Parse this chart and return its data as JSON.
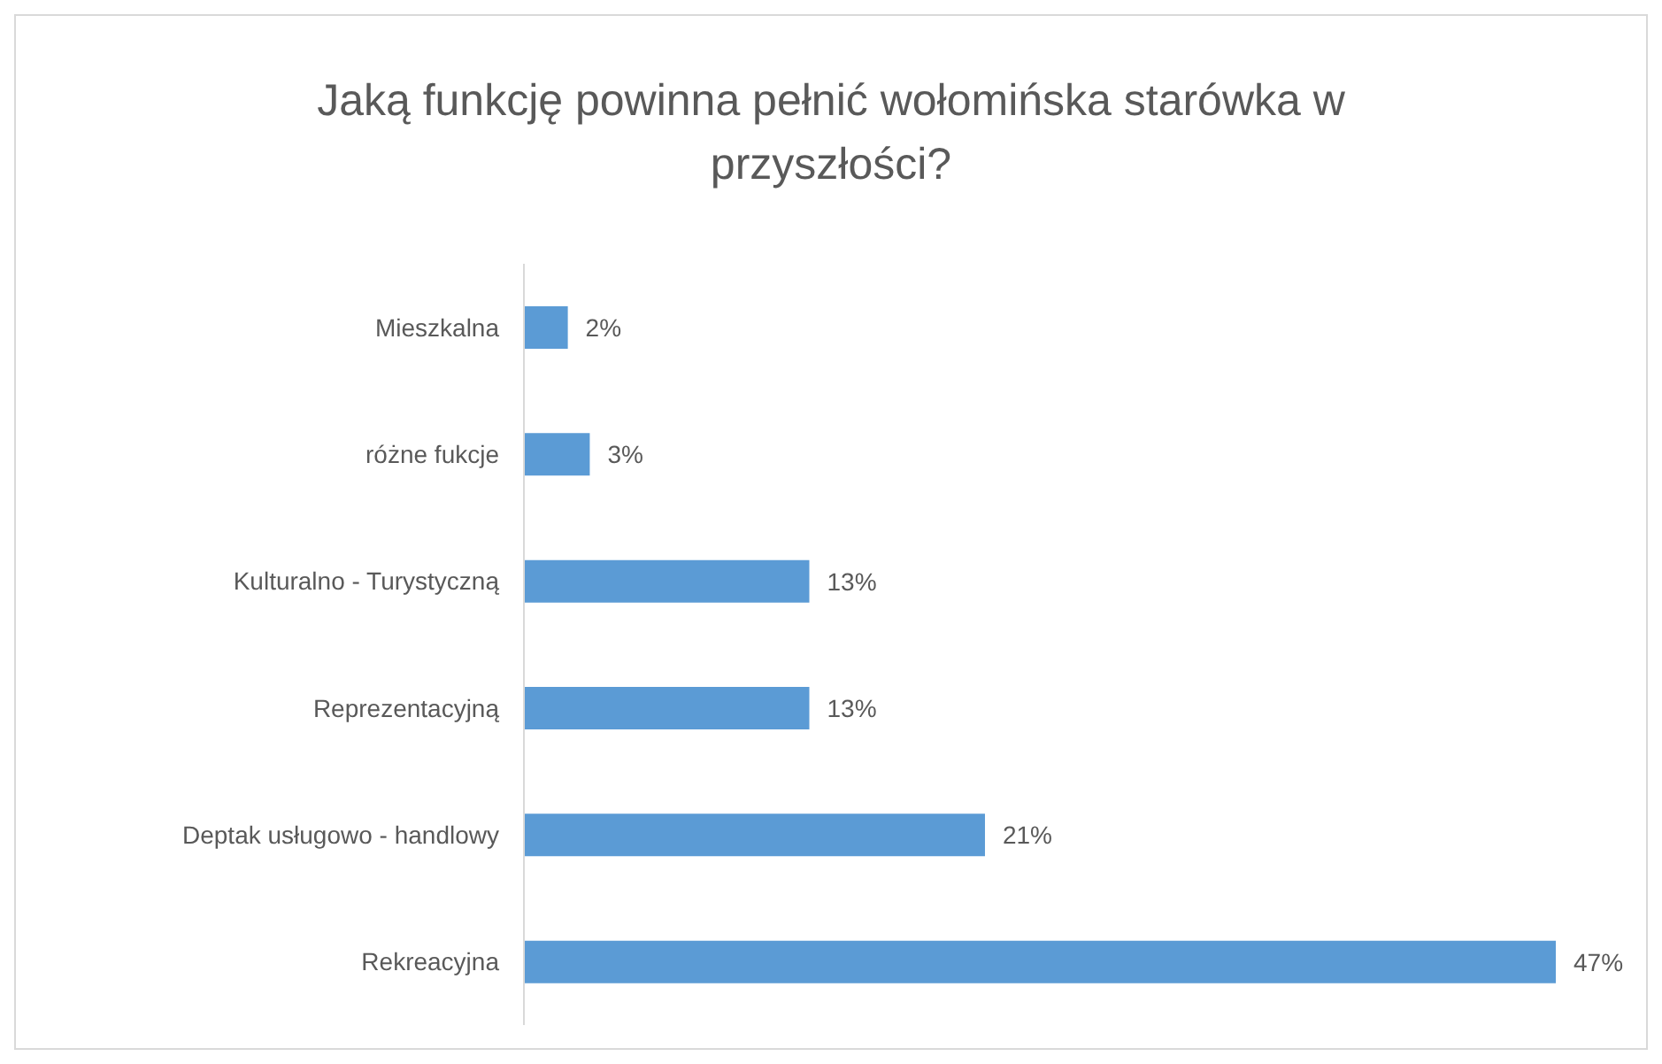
{
  "chart_data": {
    "type": "bar",
    "orientation": "horizontal",
    "title": "Jaką funkcję powinna pełnić wołomińska starówka w przyszłości?",
    "categories": [
      "Mieszkalna",
      "różne fukcje",
      "Kulturalno - Turystyczną",
      "Reprezentacyjną",
      "Deptak usługowo - handlowy",
      "Rekreacyjna"
    ],
    "values": [
      2,
      3,
      13,
      13,
      21,
      47
    ],
    "value_labels": [
      "2%",
      "3%",
      "13%",
      "13%",
      "21%",
      "47%"
    ],
    "color": "#5b9bd5",
    "grid": false
  }
}
